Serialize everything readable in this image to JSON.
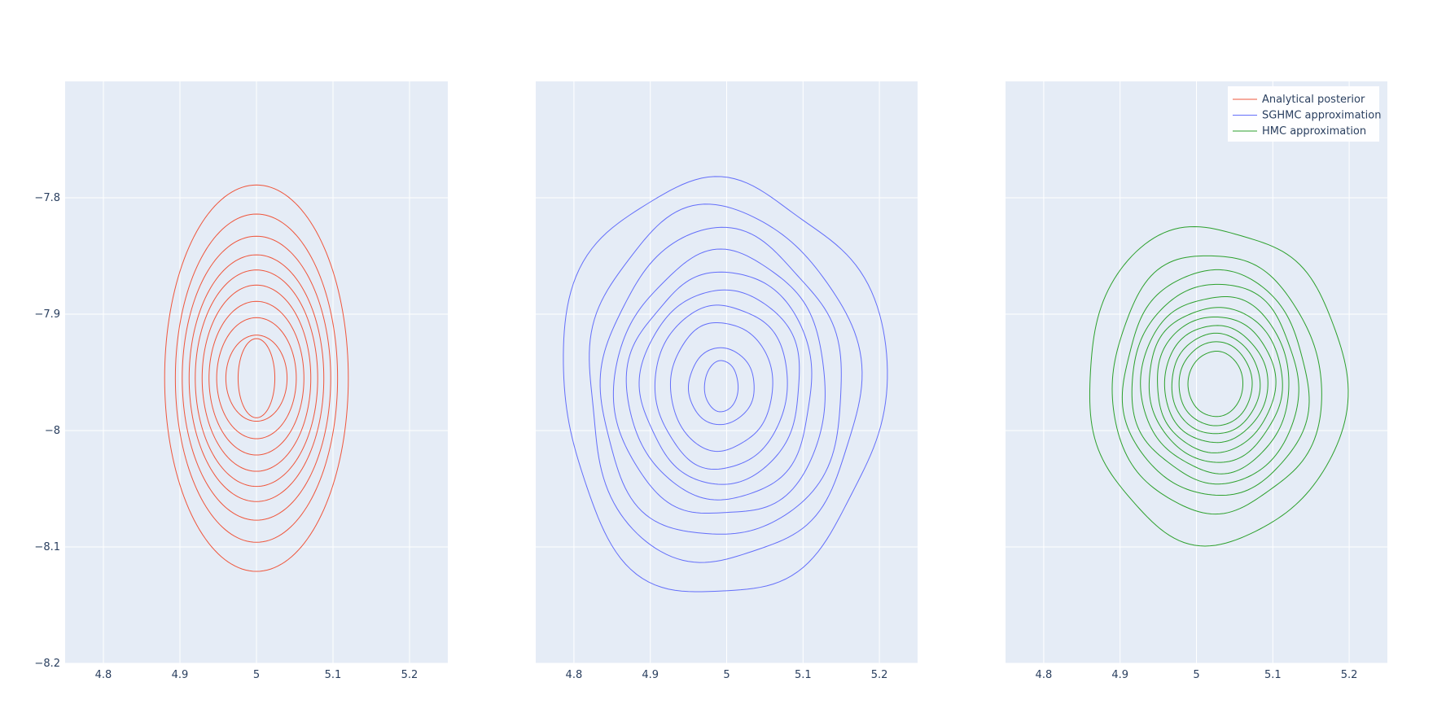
{
  "chart_data": {
    "type": "contour",
    "xlim": [
      4.75,
      5.25
    ],
    "ylim": [
      -8.2,
      -7.7
    ],
    "x_ticks": [
      4.8,
      4.9,
      5,
      5.1,
      5.2
    ],
    "y_ticks": [
      -7.8,
      -7.9,
      -8,
      -8.1,
      -8.2
    ],
    "x_tick_labels": [
      "4.8",
      "4.9",
      "5",
      "5.1",
      "5.2"
    ],
    "y_tick_labels": [
      "−7.8",
      "−7.9",
      "−8",
      "−8.1",
      "−8.2"
    ],
    "grid": true,
    "legend_position": "top-right",
    "panels": [
      {
        "series_name": "Analytical posterior",
        "color": "#ef553b",
        "center": [
          5.0,
          -7.955
        ],
        "radii": [
          [
            0.12,
            0.166
          ],
          [
            0.106,
            0.141
          ],
          [
            0.097,
            0.122
          ],
          [
            0.088,
            0.106
          ],
          [
            0.08,
            0.093
          ],
          [
            0.071,
            0.08
          ],
          [
            0.062,
            0.066
          ],
          [
            0.052,
            0.052
          ],
          [
            0.04,
            0.037
          ],
          [
            0.024,
            0.034
          ]
        ],
        "noise": 0
      },
      {
        "series_name": "SGHMC approximation",
        "color": "#636efa",
        "center": [
          4.993,
          -7.962
        ],
        "radii": [
          [
            0.215,
            0.175
          ],
          [
            0.18,
            0.15
          ],
          [
            0.16,
            0.13
          ],
          [
            0.14,
            0.112
          ],
          [
            0.122,
            0.097
          ],
          [
            0.105,
            0.083
          ],
          [
            0.087,
            0.07
          ],
          [
            0.067,
            0.055
          ],
          [
            0.043,
            0.033
          ],
          [
            0.022,
            0.022
          ]
        ],
        "noise": 0.07
      },
      {
        "series_name": "HMC approximation",
        "color": "#2ca02c",
        "center": [
          5.025,
          -7.96
        ],
        "radii": [
          [
            0.17,
            0.135
          ],
          [
            0.138,
            0.11
          ],
          [
            0.122,
            0.096
          ],
          [
            0.11,
            0.085
          ],
          [
            0.098,
            0.075
          ],
          [
            0.088,
            0.066
          ],
          [
            0.078,
            0.058
          ],
          [
            0.068,
            0.05
          ],
          [
            0.058,
            0.043
          ],
          [
            0.048,
            0.036
          ],
          [
            0.036,
            0.028
          ]
        ],
        "noise": 0.05
      }
    ]
  },
  "legend": {
    "items": [
      {
        "label": "Analytical posterior",
        "color": "#ef553b"
      },
      {
        "label": "SGHMC approximation",
        "color": "#636efa"
      },
      {
        "label": "HMC approximation",
        "color": "#2ca02c"
      }
    ]
  }
}
